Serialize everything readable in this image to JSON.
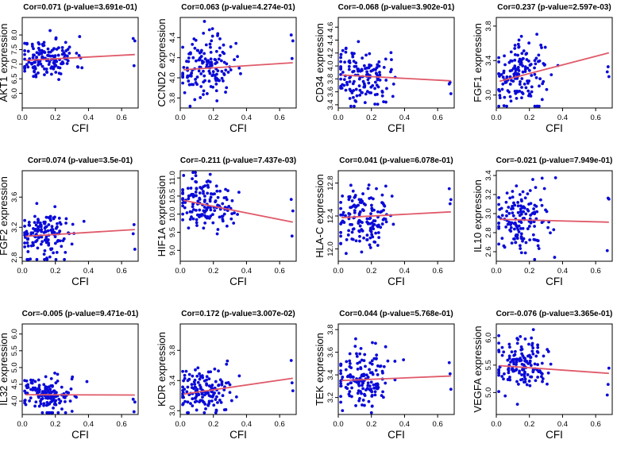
{
  "point_color": "#0a0ad8",
  "line_color": "#e05a6a",
  "chart_data": [
    {
      "type": "scatter",
      "title": "Cor=0.071 (p-value=3.691e-01)",
      "xlabel": "CFI",
      "ylabel": "AKT1 expression",
      "xlim": [
        0,
        0.7
      ],
      "ylim": [
        5.5,
        8.6
      ],
      "xticks": [
        0.0,
        0.2,
        0.4,
        0.6
      ],
      "xtick_labels": [
        "0.0",
        "0.2",
        "0.4",
        "0.6"
      ],
      "yticks": [
        6.0,
        6.5,
        7.0,
        7.5,
        8.0
      ],
      "ytick_labels": [
        "6.0",
        "6.5",
        "7.0",
        "7.5",
        "8.0"
      ],
      "fit": {
        "x": [
          0.02,
          0.68
        ],
        "y": [
          7.13,
          7.33
        ]
      },
      "n_points": 150,
      "seed": 11,
      "cluster_x": 0.15,
      "cluster_y": 7.2,
      "spread_y": 0.35
    },
    {
      "type": "scatter",
      "title": "Cor=0.063 (p-value=4.274e-01)",
      "xlabel": "CFI",
      "ylabel": "CCND2 expression",
      "xlim": [
        0,
        0.7
      ],
      "ylim": [
        3.7,
        4.6
      ],
      "xticks": [
        0.0,
        0.2,
        0.4,
        0.6
      ],
      "xtick_labels": [
        "0.0",
        "0.2",
        "0.4",
        "0.6"
      ],
      "yticks": [
        3.8,
        4.0,
        4.2,
        4.4
      ],
      "ytick_labels": [
        "3.8",
        "4.0",
        "4.2",
        "4.4"
      ],
      "fit": {
        "x": [
          0.02,
          0.68
        ],
        "y": [
          4.08,
          4.15
        ]
      },
      "n_points": 150,
      "seed": 23,
      "cluster_x": 0.15,
      "cluster_y": 4.1,
      "spread_y": 0.15
    },
    {
      "type": "scatter",
      "title": "Cor=-0.068 (p-value=3.902e-01)",
      "xlabel": "CFI",
      "ylabel": "CD34 expression",
      "xlim": [
        0,
        0.7
      ],
      "ylim": [
        3.35,
        4.75
      ],
      "xticks": [
        0.0,
        0.2,
        0.4,
        0.6
      ],
      "xtick_labels": [
        "0.0",
        "0.2",
        "0.4",
        "0.6"
      ],
      "yticks": [
        3.4,
        3.6,
        3.8,
        4.0,
        4.2,
        4.4,
        4.6
      ],
      "ytick_labels": [
        "3.4",
        "3.6",
        "3.8",
        "4.0",
        "4.2",
        "4.4",
        "4.6"
      ],
      "fit": {
        "x": [
          0.02,
          0.68
        ],
        "y": [
          3.86,
          3.77
        ]
      },
      "n_points": 150,
      "seed": 37,
      "cluster_x": 0.14,
      "cluster_y": 3.85,
      "spread_y": 0.22
    },
    {
      "type": "scatter",
      "title": "Cor=0.237 (p-value=2.597e-03)",
      "xlabel": "CFI",
      "ylabel": "FGF1 expression",
      "xlim": [
        0,
        0.7
      ],
      "ylim": [
        2.85,
        3.9
      ],
      "xticks": [
        0.0,
        0.2,
        0.4,
        0.6
      ],
      "xtick_labels": [
        "0.0",
        "0.2",
        "0.4",
        "0.6"
      ],
      "yticks": [
        3.0,
        3.4,
        3.8
      ],
      "ytick_labels": [
        "3.0",
        "3.4",
        "3.8"
      ],
      "fit": {
        "x": [
          0.02,
          0.68
        ],
        "y": [
          3.16,
          3.49
        ]
      },
      "n_points": 150,
      "seed": 41,
      "cluster_x": 0.15,
      "cluster_y": 3.22,
      "spread_y": 0.18
    },
    {
      "type": "scatter",
      "title": "Cor=0.074 (p-value=3.5e-01)",
      "xlabel": "CFI",
      "ylabel": "FGF2 expression",
      "xlim": [
        0,
        0.7
      ],
      "ylim": [
        2.75,
        3.95
      ],
      "xticks": [
        0.0,
        0.2,
        0.4,
        0.6
      ],
      "xtick_labels": [
        "0.0",
        "0.2",
        "0.4",
        "0.6"
      ],
      "yticks": [
        2.8,
        3.2,
        3.6
      ],
      "ytick_labels": [
        "2.8",
        "3.2",
        "3.6"
      ],
      "fit": {
        "x": [
          0.02,
          0.68
        ],
        "y": [
          3.08,
          3.17
        ]
      },
      "n_points": 150,
      "seed": 53,
      "cluster_x": 0.14,
      "cluster_y": 3.08,
      "spread_y": 0.17
    },
    {
      "type": "scatter",
      "title": "Cor=-0.211 (p-value=7.437e-03)",
      "xlabel": "CFI",
      "ylabel": "HIF1A expression",
      "xlim": [
        0,
        0.7
      ],
      "ylim": [
        8.7,
        11.2
      ],
      "xticks": [
        0.0,
        0.2,
        0.4,
        0.6
      ],
      "xtick_labels": [
        "0.0",
        "0.2",
        "0.4",
        "0.6"
      ],
      "yticks": [
        9.0,
        9.5,
        10.0,
        10.5,
        11.0
      ],
      "ytick_labels": [
        "9.0",
        "9.5",
        "10.0",
        "10.5",
        "11.0"
      ],
      "fit": {
        "x": [
          0.02,
          0.68
        ],
        "y": [
          10.38,
          9.78
        ]
      },
      "n_points": 150,
      "seed": 67,
      "cluster_x": 0.14,
      "cluster_y": 10.3,
      "spread_y": 0.35
    },
    {
      "type": "scatter",
      "title": "Cor=0.041 (p-value=6.078e-01)",
      "xlabel": "CFI",
      "ylabel": "HLA-C expression",
      "xlim": [
        0,
        0.7
      ],
      "ylim": [
        11.85,
        12.95
      ],
      "xticks": [
        0.0,
        0.2,
        0.4,
        0.6
      ],
      "xtick_labels": [
        "0.0",
        "0.2",
        "0.4",
        "0.6"
      ],
      "yticks": [
        12.0,
        12.4,
        12.8
      ],
      "ytick_labels": [
        "12.0",
        "12.4",
        "12.8"
      ],
      "fit": {
        "x": [
          0.02,
          0.68
        ],
        "y": [
          12.38,
          12.45
        ]
      },
      "n_points": 150,
      "seed": 79,
      "cluster_x": 0.15,
      "cluster_y": 12.4,
      "spread_y": 0.18
    },
    {
      "type": "scatter",
      "title": "Cor=-0.021 (p-value=7.949e-01)",
      "xlabel": "CFI",
      "ylabel": "IL10 expression",
      "xlim": [
        0,
        0.7
      ],
      "ylim": [
        2.5,
        3.45
      ],
      "xticks": [
        0.0,
        0.2,
        0.4,
        0.6
      ],
      "xtick_labels": [
        "0.0",
        "0.2",
        "0.4",
        "0.6"
      ],
      "yticks": [
        2.6,
        2.8,
        3.0,
        3.2,
        3.4
      ],
      "ytick_labels": [
        "2.6",
        "2.8",
        "3.0",
        "3.2",
        "3.4"
      ],
      "fit": {
        "x": [
          0.02,
          0.68
        ],
        "y": [
          2.94,
          2.91
        ]
      },
      "n_points": 150,
      "seed": 83,
      "cluster_x": 0.15,
      "cluster_y": 2.93,
      "spread_y": 0.18
    },
    {
      "type": "scatter",
      "title": "Cor=-0.005 (p-value=9.471e-01)",
      "xlabel": "CFI",
      "ylabel": "IL32 expression",
      "xlim": [
        0,
        0.7
      ],
      "ylim": [
        3.6,
        6.3
      ],
      "xticks": [
        0.0,
        0.2,
        0.4,
        0.6
      ],
      "xtick_labels": [
        "0.0",
        "0.2",
        "0.4",
        "0.6"
      ],
      "yticks": [
        4.0,
        4.5,
        5.0,
        5.5,
        6.0
      ],
      "ytick_labels": [
        "4.0",
        "4.5",
        "5.0",
        "5.5",
        "6.0"
      ],
      "fit": {
        "x": [
          0.02,
          0.68
        ],
        "y": [
          4.19,
          4.18
        ]
      },
      "n_points": 150,
      "seed": 97,
      "cluster_x": 0.13,
      "cluster_y": 4.18,
      "spread_y": 0.3
    },
    {
      "type": "scatter",
      "title": "Cor=0.172 (p-value=3.007e-02)",
      "xlabel": "CFI",
      "ylabel": "KDR expression",
      "xlim": [
        0,
        0.7
      ],
      "ylim": [
        2.95,
        4.15
      ],
      "xticks": [
        0.0,
        0.2,
        0.4,
        0.6
      ],
      "xtick_labels": [
        "0.0",
        "0.2",
        "0.4",
        "0.6"
      ],
      "yticks": [
        3.0,
        3.4,
        3.8
      ],
      "ytick_labels": [
        "3.0",
        "3.4",
        "3.8"
      ],
      "fit": {
        "x": [
          0.02,
          0.68
        ],
        "y": [
          3.22,
          3.43
        ]
      },
      "n_points": 150,
      "seed": 101,
      "cluster_x": 0.14,
      "cluster_y": 3.24,
      "spread_y": 0.15
    },
    {
      "type": "scatter",
      "title": "Cor=0.044 (p-value=5.768e-01)",
      "xlabel": "CFI",
      "ylabel": "TEK expression",
      "xlim": [
        0,
        0.7
      ],
      "ylim": [
        3.05,
        3.85
      ],
      "xticks": [
        0.0,
        0.2,
        0.4,
        0.6
      ],
      "xtick_labels": [
        "0.0",
        "0.2",
        "0.4",
        "0.6"
      ],
      "yticks": [
        3.2,
        3.4,
        3.6,
        3.8
      ],
      "ytick_labels": [
        "3.2",
        "3.4",
        "3.6",
        "3.8"
      ],
      "fit": {
        "x": [
          0.02,
          0.68
        ],
        "y": [
          3.35,
          3.39
        ]
      },
      "n_points": 150,
      "seed": 113,
      "cluster_x": 0.15,
      "cluster_y": 3.36,
      "spread_y": 0.13
    },
    {
      "type": "scatter",
      "title": "Cor=-0.076 (p-value=3.365e-01)",
      "xlabel": "CFI",
      "ylabel": "VEGFA expression",
      "xlim": [
        0,
        0.7
      ],
      "ylim": [
        4.6,
        6.25
      ],
      "xticks": [
        0.0,
        0.2,
        0.4,
        0.6
      ],
      "xtick_labels": [
        "0.0",
        "0.2",
        "0.4",
        "0.6"
      ],
      "yticks": [
        5.0,
        5.5,
        6.0
      ],
      "ytick_labels": [
        "5.0",
        "5.5",
        "6.0"
      ],
      "fit": {
        "x": [
          0.02,
          0.68
        ],
        "y": [
          5.49,
          5.35
        ]
      },
      "n_points": 150,
      "seed": 127,
      "cluster_x": 0.15,
      "cluster_y": 5.46,
      "spread_y": 0.25
    }
  ]
}
